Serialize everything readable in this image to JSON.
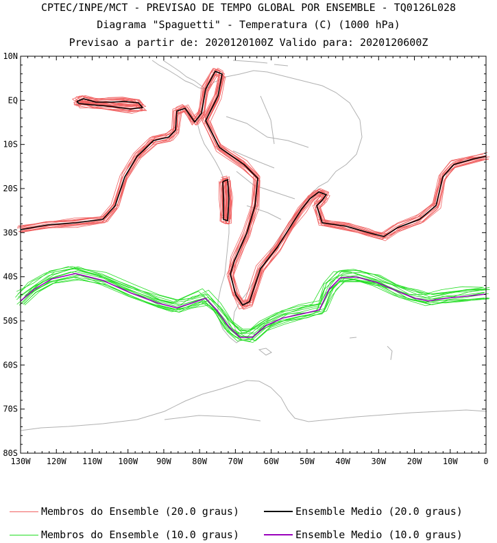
{
  "header": {
    "line1": "CPTEC/INPE/MCT - PREVISAO DE TEMPO GLOBAL POR ENSEMBLE - TQ0126L028",
    "line2": "Diagrama \"Spaguetti\" - Temperatura (C) (1000 hPa)",
    "line3": "Previsao a partir de: 2020120100Z  Valido para: 2020120600Z"
  },
  "axes": {
    "lat_labels": [
      "10N",
      "EQ",
      "10S",
      "20S",
      "30S",
      "40S",
      "50S",
      "60S",
      "70S",
      "80S"
    ],
    "lon_labels": [
      "130W",
      "120W",
      "110W",
      "100W",
      "90W",
      "80W",
      "70W",
      "60W",
      "50W",
      "40W",
      "30W",
      "20W",
      "10W",
      "0"
    ]
  },
  "legend": [
    {
      "label": "Membros do Ensemble (20.0 graus)",
      "color": "#f06060"
    },
    {
      "label": "Ensemble Medio (20.0 graus)",
      "color": "#000000"
    },
    {
      "label": "Membros do Ensemble (10.0 graus)",
      "color": "#22dd22"
    },
    {
      "label": "Ensemble Medio (10.0 graus)",
      "color": "#9900bb"
    }
  ],
  "colors": {
    "coast": "#b0b0b0",
    "member20": "#f06060",
    "mean20": "#000000",
    "member10": "#22dd22",
    "mean10": "#9900bb"
  }
}
